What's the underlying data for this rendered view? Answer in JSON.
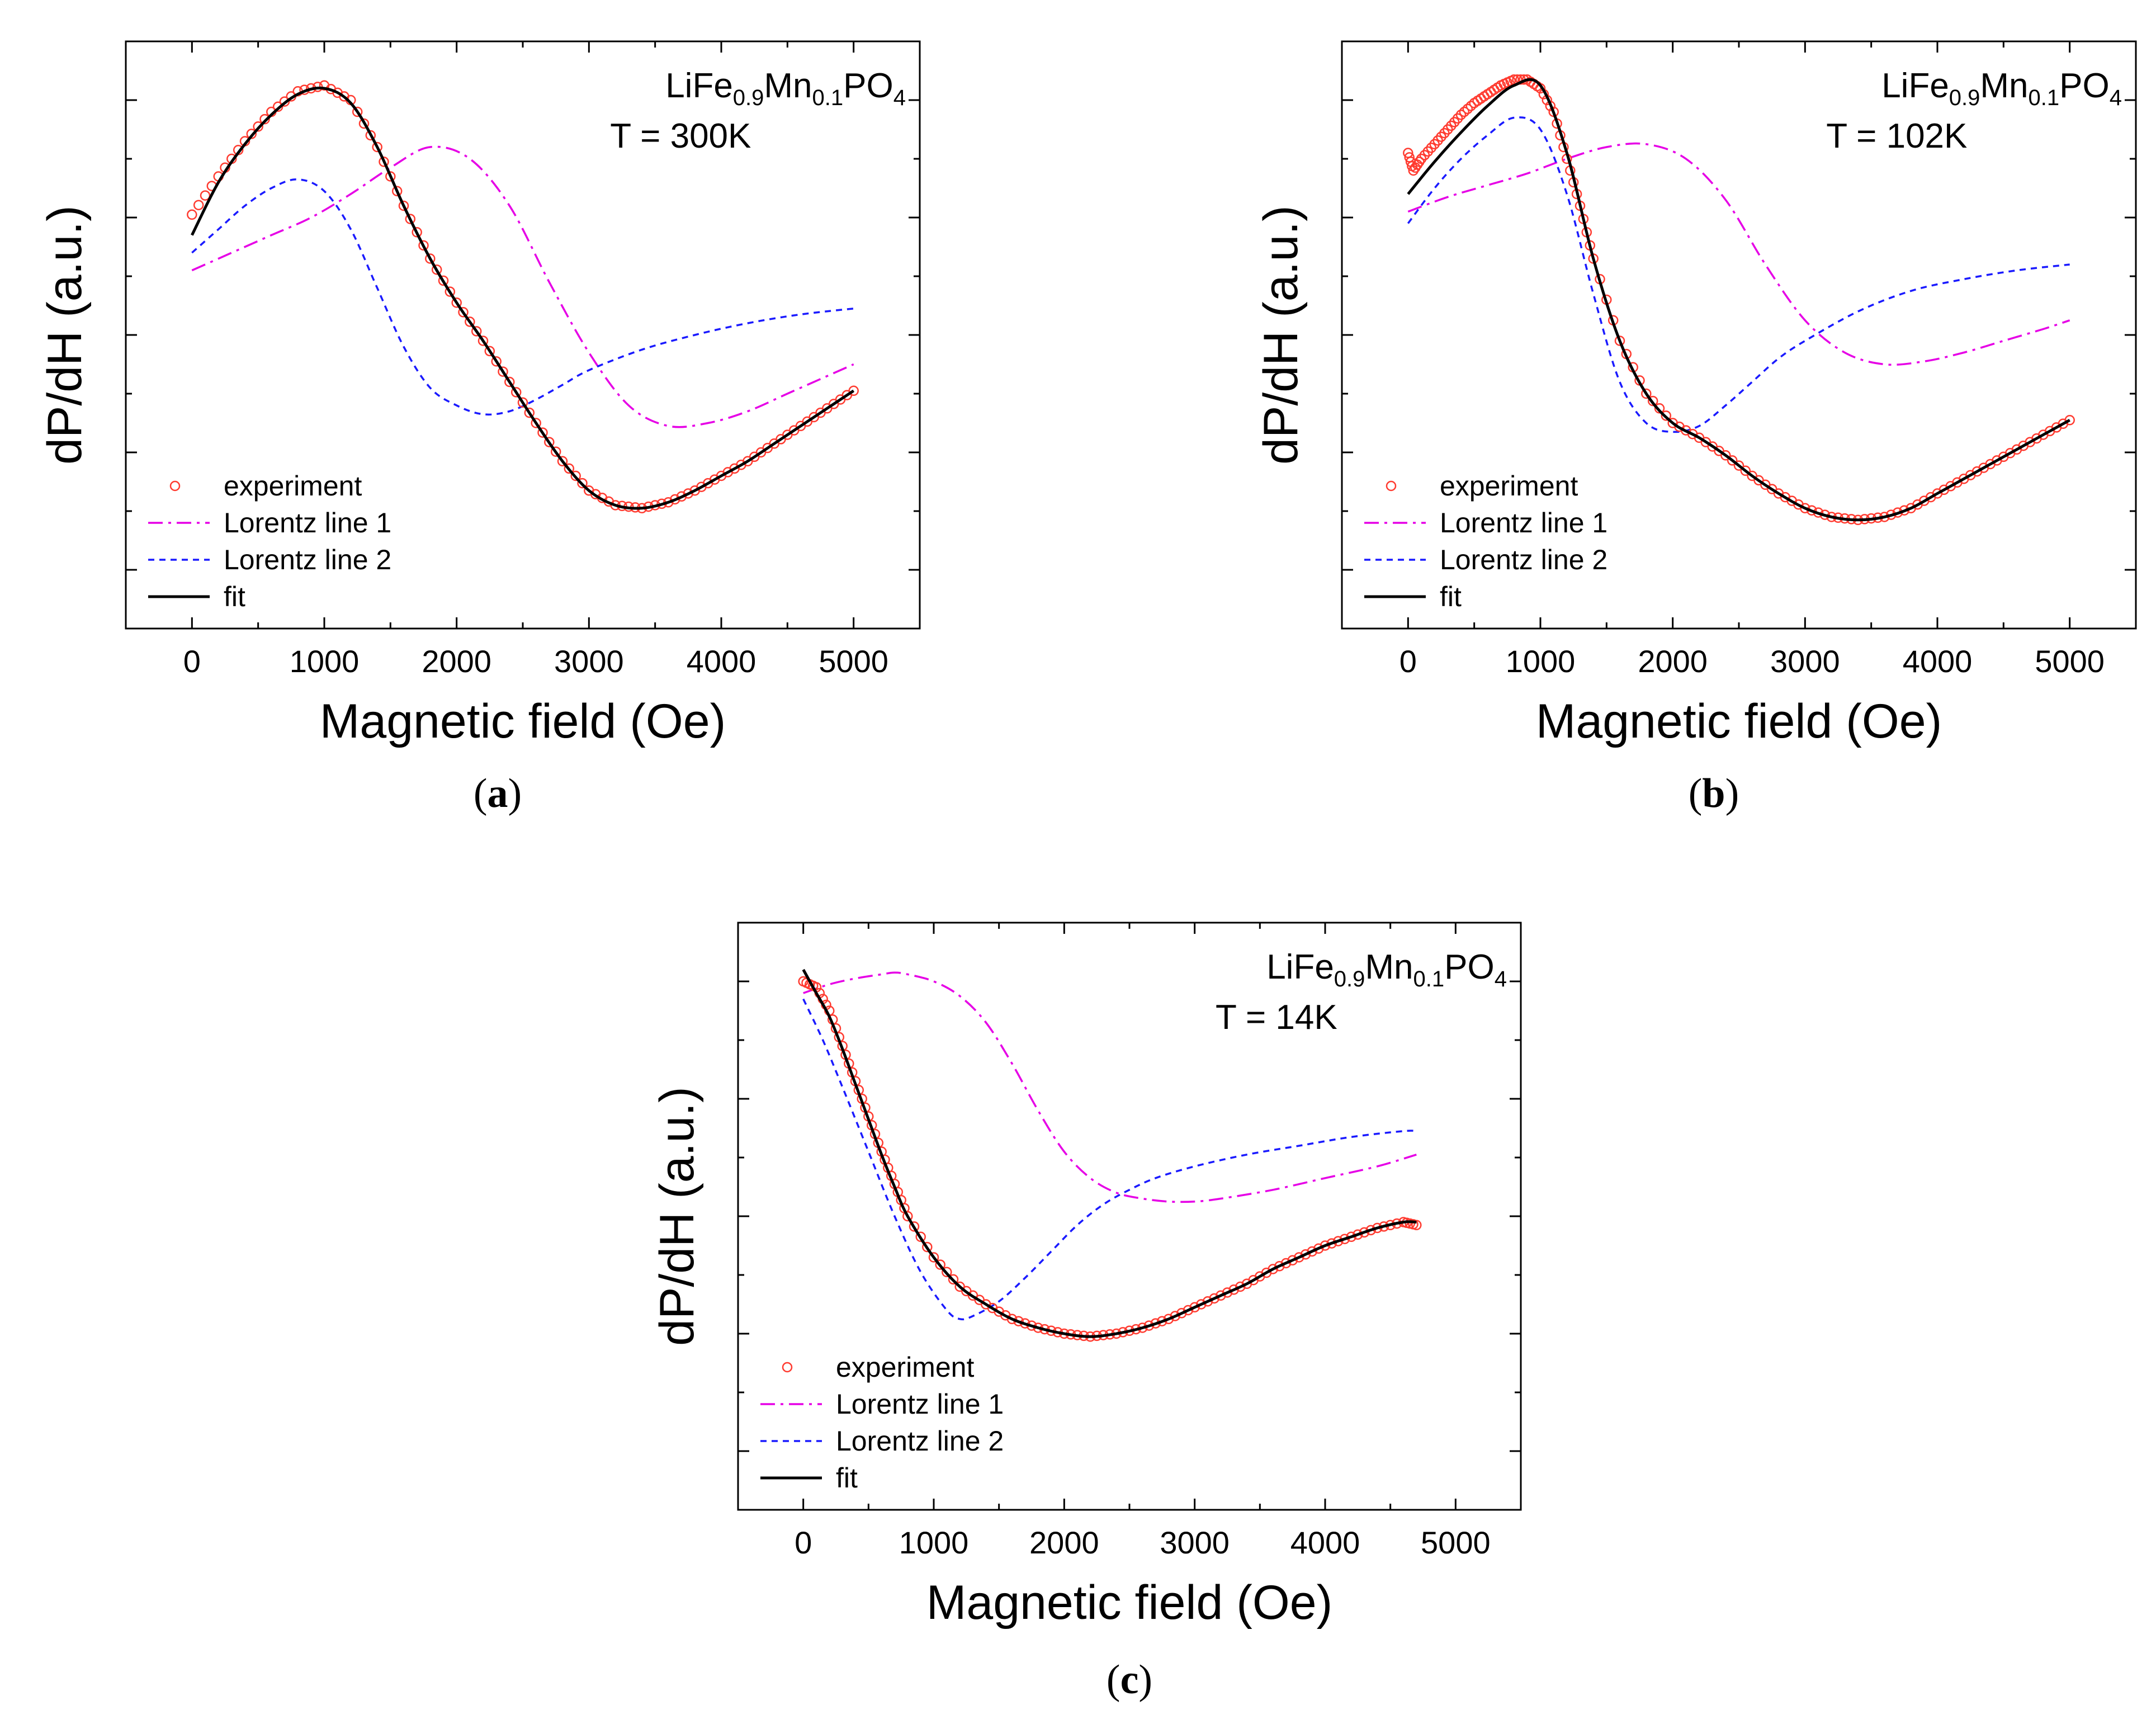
{
  "figure": {
    "panels": [
      {
        "id": "a",
        "caption": {
          "open": "(",
          "letter": "a",
          "close": ")"
        },
        "annotation": {
          "compound": {
            "base1": "LiFe",
            "sub1": "0.9",
            "base2": "Mn",
            "sub2": "0.1",
            "base3": "PO",
            "sub3": "4"
          },
          "temperature": "T = 300K"
        },
        "chart_data": {
          "type": "line",
          "title": "",
          "xlabel": "Magnetic field (Oe)",
          "ylabel": "dP/dH (a.u.)",
          "xlim": [
            -500,
            5500
          ],
          "ylim": [
            -10,
            90
          ],
          "xticks": [
            0,
            1000,
            2000,
            3000,
            4000,
            5000
          ],
          "yticks": [
            0,
            10,
            20,
            30,
            40,
            50,
            60,
            70,
            80,
            90
          ],
          "show_ytick_labels": false,
          "grid": false,
          "legend_position": "bottom-left",
          "series": [
            {
              "name": "experiment",
              "style": "circles",
              "color": "#ff3b30",
              "x": [
                0,
                200,
                400,
                600,
                800,
                1000,
                1200,
                1400,
                1600,
                1800,
                2000,
                2200,
                2400,
                2600,
                2800,
                3000,
                3200,
                3400,
                3600,
                3800,
                4000,
                4200,
                4400,
                4600,
                4800,
                5000
              ],
              "y": [
                60.5,
                67,
                73,
                78,
                81.5,
                82.5,
                80,
                72,
                62,
                53,
                45.5,
                39,
                32,
                25,
                18.5,
                13.5,
                11,
                10.5,
                11.5,
                13.5,
                16,
                18.5,
                21.5,
                24.5,
                27.5,
                30.5
              ]
            },
            {
              "name": "Lorentz line 1",
              "style": "dashdot",
              "color": "#e600e6",
              "x": [
                0,
                300,
                600,
                900,
                1200,
                1500,
                1800,
                2100,
                2400,
                2700,
                3000,
                3300,
                3600,
                3900,
                4200,
                4500,
                4800,
                5000
              ],
              "y": [
                51,
                54,
                57,
                60,
                64,
                68.5,
                72,
                70,
                62,
                49,
                37,
                28,
                24.5,
                25,
                27,
                30,
                33,
                35
              ]
            },
            {
              "name": "Lorentz line 2",
              "style": "dotted",
              "color": "#1a1aff",
              "x": [
                0,
                200,
                400,
                600,
                800,
                1000,
                1200,
                1400,
                1600,
                1800,
                2000,
                2200,
                2400,
                2600,
                2800,
                3000,
                3400,
                3800,
                4200,
                4600,
                5000
              ],
              "y": [
                54,
                58,
                62,
                65,
                66.5,
                64.5,
                58,
                48,
                38,
                31,
                28,
                26.5,
                27,
                29,
                31.5,
                34,
                37.5,
                40,
                42,
                43.5,
                44.5
              ]
            },
            {
              "name": "fit",
              "style": "solid",
              "color": "#000000",
              "x": [
                0,
                200,
                400,
                600,
                800,
                1000,
                1200,
                1400,
                1600,
                1800,
                2000,
                2200,
                2400,
                2600,
                2800,
                3000,
                3200,
                3400,
                3600,
                3800,
                4000,
                4200,
                4400,
                4600,
                4800,
                5000
              ],
              "y": [
                57,
                66,
                72.5,
                77.5,
                81,
                82,
                79.5,
                72,
                62,
                53,
                45.5,
                39,
                32,
                25,
                18.5,
                13.5,
                11,
                10.5,
                11.5,
                13.5,
                16,
                18.5,
                21.5,
                24.5,
                27.5,
                30.5
              ]
            }
          ]
        }
      },
      {
        "id": "b",
        "caption": {
          "open": "(",
          "letter": "b",
          "close": ")"
        },
        "annotation": {
          "compound": {
            "base1": "LiFe",
            "sub1": "0.9",
            "base2": "Mn",
            "sub2": "0.1",
            "base3": "PO",
            "sub3": "4"
          },
          "temperature": "T = 102K"
        },
        "chart_data": {
          "type": "line",
          "title": "",
          "xlabel": "Magnetic field (Oe)",
          "ylabel": "dP/dH (a.u.)",
          "xlim": [
            -500,
            5500
          ],
          "ylim": [
            -10,
            90
          ],
          "xticks": [
            0,
            1000,
            2000,
            3000,
            4000,
            5000
          ],
          "yticks": [
            0,
            10,
            20,
            30,
            40,
            50,
            60,
            70,
            80,
            90
          ],
          "show_ytick_labels": false,
          "grid": false,
          "legend_position": "bottom-left",
          "series": [
            {
              "name": "experiment",
              "style": "circles",
              "color": "#ff3b30",
              "x": [
                0,
                40,
                100,
                200,
                300,
                400,
                500,
                600,
                700,
                800,
                900,
                1000,
                1100,
                1200,
                1300,
                1400,
                1600,
                1800,
                2000,
                2200,
                2400,
                2600,
                2800,
                3000,
                3200,
                3400,
                3600,
                3800,
                4000,
                4200,
                4400,
                4600,
                4800,
                5000
              ],
              "y": [
                71,
                68,
                70,
                72.5,
                75,
                77.5,
                79.5,
                81,
                82.5,
                83.5,
                83.5,
                82,
                78,
                70,
                62,
                53,
                39,
                30,
                25,
                22.5,
                19.5,
                16,
                13,
                10.5,
                9,
                8.5,
                9,
                10.5,
                13,
                15.5,
                18,
                20.5,
                23,
                25.5
              ]
            },
            {
              "name": "Lorentz line 1",
              "style": "dashdot",
              "color": "#e600e6",
              "x": [
                0,
                300,
                600,
                900,
                1200,
                1500,
                1800,
                2100,
                2400,
                2700,
                3000,
                3300,
                3600,
                3900,
                4200,
                4500,
                4800,
                5000
              ],
              "y": [
                61,
                63.5,
                65.5,
                67.5,
                70,
                72,
                72.5,
                70,
                63,
                52,
                42.5,
                37,
                35,
                35.5,
                37,
                39,
                41,
                42.5
              ]
            },
            {
              "name": "Lorentz line 2",
              "style": "dotted",
              "color": "#1a1aff",
              "x": [
                0,
                200,
                400,
                600,
                800,
                1000,
                1200,
                1400,
                1600,
                1800,
                2000,
                2200,
                2400,
                2600,
                2800,
                3000,
                3400,
                3800,
                4200,
                4600,
                5000
              ],
              "y": [
                59,
                65,
                70,
                74,
                77,
                75,
                64,
                47,
                32,
                25,
                23.5,
                24.5,
                28,
                32,
                36,
                39,
                44,
                47.5,
                49.5,
                51,
                52
              ]
            },
            {
              "name": "fit",
              "style": "solid",
              "color": "#000000",
              "x": [
                0,
                200,
                400,
                600,
                800,
                1000,
                1200,
                1400,
                1600,
                1800,
                2000,
                2200,
                2400,
                2600,
                2800,
                3000,
                3200,
                3400,
                3600,
                3800,
                4000,
                4200,
                4400,
                4600,
                4800,
                5000
              ],
              "y": [
                64,
                69.5,
                74.5,
                79,
                82.5,
                82.5,
                71,
                53,
                39,
                30,
                25,
                22.5,
                19.5,
                16,
                13,
                10.5,
                9,
                8.5,
                9,
                10.5,
                13,
                15.5,
                18,
                20.5,
                23,
                25.5
              ]
            }
          ]
        }
      },
      {
        "id": "c",
        "caption": {
          "open": "(",
          "letter": "c",
          "close": ")"
        },
        "annotation": {
          "compound": {
            "base1": "LiFe",
            "sub1": "0.9",
            "base2": "Mn",
            "sub2": "0.1",
            "base3": "PO",
            "sub3": "4"
          },
          "temperature": "T = 14K"
        },
        "chart_data": {
          "type": "line",
          "title": "",
          "xlabel": "Magnetic field (Oe)",
          "ylabel": "dP/dH (a.u.)",
          "xlim": [
            -500,
            5500
          ],
          "ylim": [
            -10,
            90
          ],
          "xticks": [
            0,
            1000,
            2000,
            3000,
            4000,
            5000
          ],
          "yticks": [
            0,
            10,
            20,
            30,
            40,
            50,
            60,
            70,
            80,
            90
          ],
          "show_ytick_labels": false,
          "grid": false,
          "legend_position": "bottom-left",
          "series": [
            {
              "name": "experiment",
              "style": "circles",
              "color": "#ff3b30",
              "x": [
                0,
                100,
                200,
                300,
                400,
                500,
                600,
                700,
                800,
                1000,
                1200,
                1400,
                1600,
                1800,
                2000,
                2200,
                2400,
                2600,
                2800,
                3000,
                3200,
                3400,
                3600,
                3800,
                4000,
                4200,
                4400,
                4600,
                4700
              ],
              "y": [
                80,
                79,
                75,
                69,
                63,
                57,
                51,
                45.5,
                40,
                33,
                28,
                25,
                22.5,
                21,
                20,
                19.5,
                20,
                21,
                22.5,
                24.5,
                26.5,
                28.5,
                31,
                33,
                35,
                36.5,
                38,
                39,
                38.5
              ]
            },
            {
              "name": "Lorentz line 1",
              "style": "dashdot",
              "color": "#e600e6",
              "x": [
                0,
                200,
                400,
                600,
                700,
                800,
                1000,
                1200,
                1400,
                1600,
                1800,
                2000,
                2200,
                2400,
                2600,
                2800,
                3000,
                3200,
                3600,
                4000,
                4400,
                4700
              ],
              "y": [
                78,
                79.5,
                80.5,
                81.2,
                81.5,
                81.2,
                80,
                77.5,
                73,
                66,
                58,
                51,
                46.5,
                44,
                43,
                42.5,
                42.5,
                43,
                44.5,
                46.5,
                48.5,
                50.5
              ]
            },
            {
              "name": "Lorentz line 2",
              "style": "dotted",
              "color": "#1a1aff",
              "x": [
                0,
                150,
                300,
                500,
                700,
                900,
                1100,
                1200,
                1300,
                1500,
                1700,
                1900,
                2100,
                2300,
                2500,
                2700,
                3000,
                3400,
                3800,
                4200,
                4600,
                4700
              ],
              "y": [
                77,
                70,
                62,
                51,
                40,
                30.5,
                24,
                22.5,
                23,
                25.5,
                29.5,
                34,
                38.5,
                42,
                44.5,
                46.5,
                48.5,
                50.5,
                52,
                53.5,
                54.5,
                54.5
              ]
            },
            {
              "name": "fit",
              "style": "solid",
              "color": "#000000",
              "x": [
                0,
                100,
                200,
                300,
                400,
                500,
                600,
                700,
                800,
                1000,
                1200,
                1400,
                1600,
                1800,
                2000,
                2200,
                2400,
                2600,
                2800,
                3000,
                3200,
                3400,
                3600,
                3800,
                4000,
                4200,
                4400,
                4600,
                4700
              ],
              "y": [
                82,
                78,
                74,
                68.5,
                62.5,
                56.5,
                50.5,
                45,
                40,
                33,
                28,
                25,
                22.5,
                21,
                20,
                19.5,
                20,
                21,
                22.5,
                24.5,
                26.5,
                28.5,
                31,
                33,
                35,
                36.5,
                38,
                39,
                39
              ]
            }
          ]
        }
      }
    ]
  }
}
